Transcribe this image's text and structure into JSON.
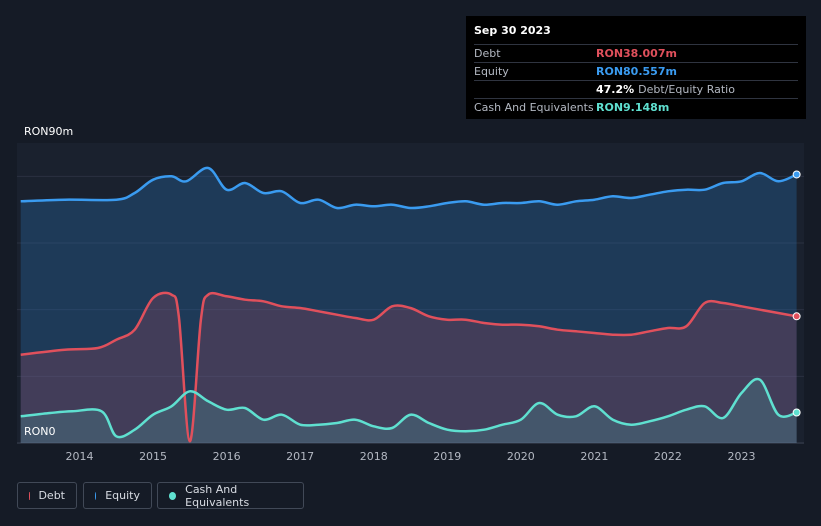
{
  "tooltip": {
    "date": "Sep 30 2023",
    "rows": [
      {
        "label": "Debt",
        "value": "RON38.007m",
        "color": "#e0505c"
      },
      {
        "label": "Equity",
        "value": "RON80.557m",
        "color": "#3a9bf0"
      },
      {
        "label": "",
        "value": "47.2%",
        "suffix": "Debt/Equity Ratio",
        "color": "#ffffff"
      },
      {
        "label": "Cash And Equivalents",
        "value": "RON9.148m",
        "color": "#5fe0d0"
      }
    ]
  },
  "legend": [
    {
      "label": "Debt",
      "color": "#e0505c"
    },
    {
      "label": "Equity",
      "color": "#3a9bf0"
    },
    {
      "label": "Cash And Equivalents",
      "color": "#5fe0d0"
    }
  ],
  "chart_data": {
    "type": "area",
    "title": "",
    "xlabel": "",
    "ylabel": "",
    "y_top_label": "RON90m",
    "y_bottom_label": "RON0",
    "ylim": [
      0,
      90
    ],
    "xlim": [
      2013.15,
      2023.85
    ],
    "x_ticks": [
      2014,
      2015,
      2016,
      2017,
      2018,
      2019,
      2020,
      2021,
      2022,
      2023
    ],
    "x_tick_labels": [
      "2014",
      "2015",
      "2016",
      "2017",
      "2018",
      "2019",
      "2020",
      "2021",
      "2022",
      "2023"
    ],
    "series": [
      {
        "name": "Equity",
        "color": "#3a9bf0",
        "x": [
          2013.2,
          2013.8,
          2014.5,
          2014.75,
          2015.0,
          2015.25,
          2015.45,
          2015.75,
          2016.0,
          2016.25,
          2016.5,
          2016.75,
          2017.0,
          2017.25,
          2017.5,
          2017.75,
          2018.0,
          2018.25,
          2018.5,
          2018.75,
          2019.0,
          2019.25,
          2019.5,
          2019.75,
          2020.0,
          2020.25,
          2020.5,
          2020.75,
          2021.0,
          2021.25,
          2021.5,
          2021.75,
          2022.0,
          2022.25,
          2022.5,
          2022.75,
          2023.0,
          2023.25,
          2023.5,
          2023.75
        ],
        "values": [
          72.5,
          73.0,
          73.0,
          75.0,
          79.0,
          80.0,
          78.5,
          82.5,
          76.0,
          78.0,
          75.0,
          75.5,
          72.0,
          73.0,
          70.5,
          71.5,
          71.0,
          71.5,
          70.5,
          71.0,
          72.0,
          72.5,
          71.5,
          72.0,
          72.0,
          72.5,
          71.5,
          72.5,
          73.0,
          74.0,
          73.5,
          74.5,
          75.5,
          76.0,
          76.0,
          78.0,
          78.5,
          81.0,
          78.5,
          80.557
        ]
      },
      {
        "name": "Debt",
        "color": "#e0505c",
        "x": [
          2013.2,
          2013.8,
          2014.25,
          2014.5,
          2014.75,
          2015.0,
          2015.25,
          2015.35,
          2015.5,
          2015.65,
          2015.75,
          2016.0,
          2016.25,
          2016.5,
          2016.75,
          2017.0,
          2017.25,
          2017.5,
          2017.75,
          2018.0,
          2018.25,
          2018.5,
          2018.75,
          2019.0,
          2019.25,
          2019.5,
          2019.75,
          2020.0,
          2020.25,
          2020.5,
          2020.75,
          2021.0,
          2021.25,
          2021.5,
          2021.75,
          2022.0,
          2022.25,
          2022.5,
          2022.75,
          2023.0,
          2023.25,
          2023.5,
          2023.75
        ],
        "values": [
          26.5,
          28.0,
          28.5,
          31.0,
          34.0,
          43.5,
          44.5,
          38.0,
          0.5,
          37.0,
          44.5,
          44.0,
          43.0,
          42.5,
          41.0,
          40.5,
          39.5,
          38.5,
          37.5,
          37.0,
          41.0,
          40.5,
          38.0,
          37.0,
          37.0,
          36.0,
          35.5,
          35.5,
          35.0,
          34.0,
          33.5,
          33.0,
          32.5,
          32.5,
          33.5,
          34.5,
          35.0,
          42.0,
          42.0,
          41.0,
          40.0,
          39.0,
          38.007
        ]
      },
      {
        "name": "Cash And Equivalents",
        "color": "#5fe0d0",
        "x": [
          2013.2,
          2013.6,
          2013.9,
          2014.3,
          2014.5,
          2014.75,
          2015.0,
          2015.25,
          2015.5,
          2015.75,
          2016.0,
          2016.25,
          2016.5,
          2016.75,
          2017.0,
          2017.25,
          2017.5,
          2017.75,
          2018.0,
          2018.25,
          2018.5,
          2018.75,
          2019.0,
          2019.25,
          2019.5,
          2019.75,
          2020.0,
          2020.25,
          2020.5,
          2020.75,
          2021.0,
          2021.25,
          2021.5,
          2021.75,
          2022.0,
          2022.25,
          2022.5,
          2022.75,
          2023.0,
          2023.25,
          2023.5,
          2023.75
        ],
        "values": [
          8.0,
          9.0,
          9.5,
          9.5,
          2.0,
          4.0,
          8.5,
          11.0,
          15.5,
          12.5,
          10.0,
          10.5,
          7.0,
          8.5,
          5.5,
          5.5,
          6.0,
          7.0,
          5.0,
          4.5,
          8.5,
          6.0,
          4.0,
          3.5,
          4.0,
          5.5,
          7.0,
          12.0,
          8.5,
          8.0,
          11.0,
          7.0,
          5.5,
          6.5,
          8.0,
          10.0,
          11.0,
          7.5,
          15.0,
          19.0,
          8.5,
          9.148
        ]
      }
    ]
  }
}
